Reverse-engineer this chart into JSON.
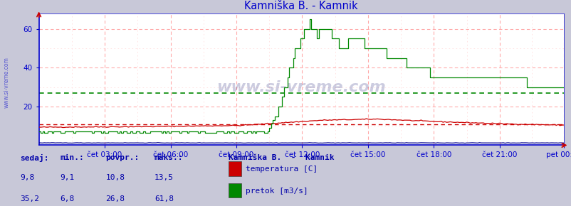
{
  "title": "Kamniška B. - Kamnik",
  "bg_color": "#c8c8d8",
  "plot_bg_color": "#ffffff",
  "ylim": [
    0,
    68
  ],
  "yticks": [
    20,
    40,
    60
  ],
  "x_labels": [
    "čet 03:00",
    "čet 06:00",
    "čet 09:00",
    "čet 12:00",
    "čet 15:00",
    "čet 18:00",
    "čet 21:00",
    "pet 00:00"
  ],
  "x_ticks_pos": [
    36,
    72,
    108,
    144,
    180,
    216,
    252,
    287
  ],
  "total_points": 288,
  "temp_color": "#cc0000",
  "flow_color": "#008800",
  "height_color": "#000088",
  "temp_avg_line": 10.8,
  "flow_avg_line": 26.8,
  "watermark": "www.si-vreme.com",
  "sidebar_text": "www.si-vreme.com",
  "legend_title": "Kamniška B.  -  Kamnik",
  "legend_items": [
    "temperatura [C]",
    "pretok [m3/s]"
  ],
  "legend_colors": [
    "#cc0000",
    "#008800"
  ],
  "table_headers": [
    "sedaj:",
    "min.:",
    "povpr.:",
    "maks.:"
  ],
  "table_temp": [
    "9,8",
    "9,1",
    "10,8",
    "13,5"
  ],
  "table_flow": [
    "35,2",
    "6,8",
    "26,8",
    "61,8"
  ],
  "table_color": "#0000aa",
  "grid_color_major": "#ffaaaa",
  "grid_color_minor": "#ffdddd",
  "axis_color": "#0000cc",
  "spine_color": "#0000cc"
}
